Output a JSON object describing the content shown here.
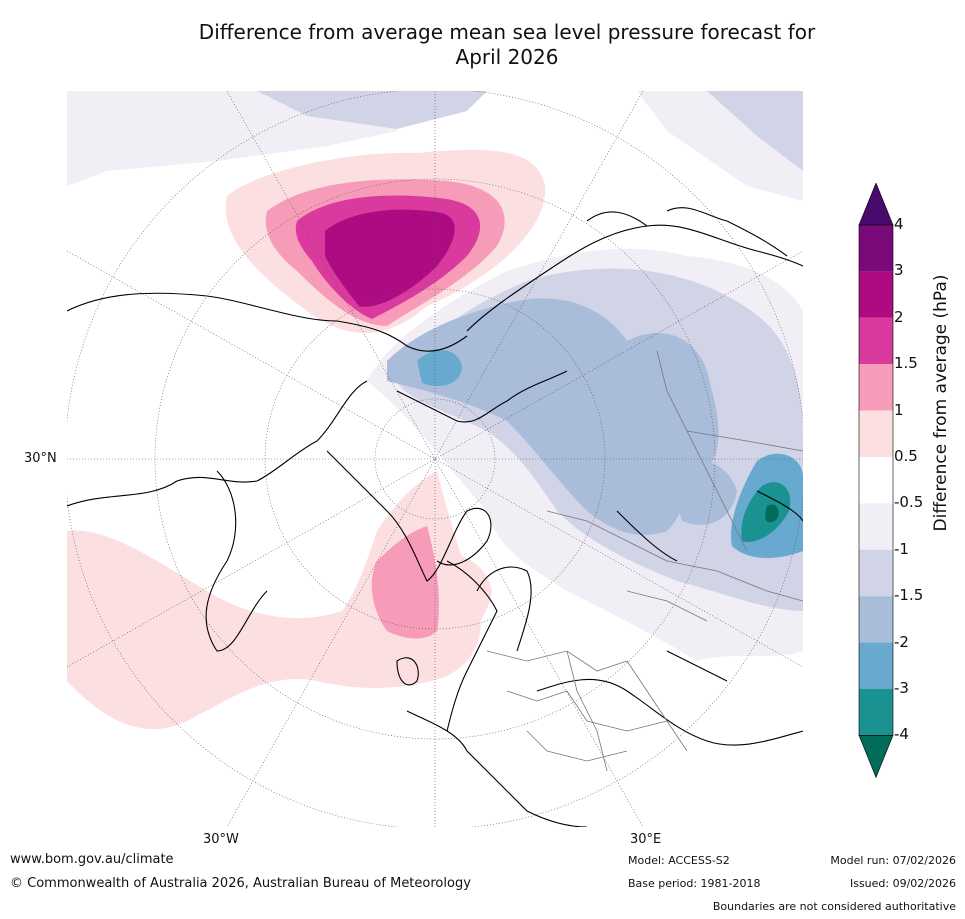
{
  "title": {
    "line1": "Difference from average mean sea level pressure forecast for",
    "line2": "April 2026"
  },
  "map": {
    "projection": "north-polar-stereographic",
    "region": "Northern Hemisphere Atlantic sector",
    "lat_label": "30°N",
    "lon_labels": [
      "30°W",
      "30°E"
    ],
    "colors": {
      "land_outline": "#000000",
      "borders": "#777777",
      "graticule": "#555555"
    }
  },
  "colorbar": {
    "title": "Difference from average (hPa)",
    "ticks": [
      "4",
      "3",
      "2",
      "1.5",
      "1",
      "0.5",
      "-0.5",
      "-1",
      "-1.5",
      "-2",
      "-3",
      "-4"
    ],
    "bins": [
      {
        "range": ">4",
        "color": "#4b0a6e"
      },
      {
        "range": "3 to 4",
        "color": "#7a0a7a"
      },
      {
        "range": "2 to 3",
        "color": "#ae0a82"
      },
      {
        "range": "1.5 to 2",
        "color": "#da3a9e"
      },
      {
        "range": "1 to 1.5",
        "color": "#f79cb8"
      },
      {
        "range": "0.5 to 1",
        "color": "#fcdfe0"
      },
      {
        "range": "-0.5 to 0.5",
        "color": "#ffffff"
      },
      {
        "range": "-1 to -0.5",
        "color": "#f2eef6"
      },
      {
        "range": "-1.5 to -1",
        "color": "#d1d3e6"
      },
      {
        "range": "-2 to -1.5",
        "color": "#a9bcda"
      },
      {
        "range": "-3 to -2",
        "color": "#67a9cf"
      },
      {
        "range": "-4 to -3",
        "color": "#1b9292"
      },
      {
        "range": "<-4",
        "color": "#016c5a"
      }
    ]
  },
  "footer": {
    "website": "www.bom.gov.au/climate",
    "copyright": "© Commonwealth of Australia 2026, Australian Bureau of Meteorology",
    "model": "Model: ACCESS-S2",
    "base_period": "Base period: 1981-2018",
    "model_run": "Model run: 07/02/2026",
    "issued": "Issued: 09/02/2026",
    "disclaimer": "Boundaries are not considered authoritative"
  }
}
